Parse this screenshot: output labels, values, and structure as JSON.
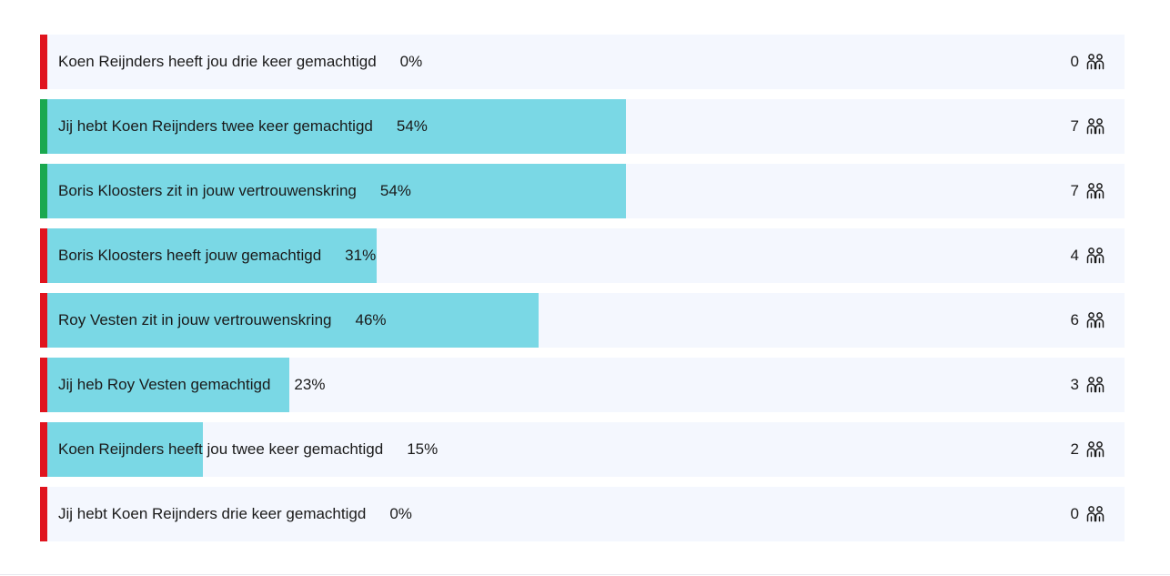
{
  "poll": {
    "colors": {
      "track": "#f4f7fe",
      "fill": "#7ad8e5",
      "status_red": "#e0141e",
      "status_green": "#1aa84f"
    },
    "voter_icon": "people-icon",
    "options": [
      {
        "label": "Koen Reijnders heeft jou drie keer gemachtigd",
        "percent_text": "0%",
        "percent": 0,
        "count": "0",
        "status": "red"
      },
      {
        "label": "Jij hebt Koen Reijnders twee keer gemachtigd",
        "percent_text": "54%",
        "percent": 54,
        "count": "7",
        "status": "green"
      },
      {
        "label": "Boris Kloosters zit in jouw vertrouwenskring",
        "percent_text": "54%",
        "percent": 54,
        "count": "7",
        "status": "green"
      },
      {
        "label": "Boris Kloosters heeft jouw gemachtigd",
        "percent_text": "31%",
        "percent": 31,
        "count": "4",
        "status": "red"
      },
      {
        "label": "Roy Vesten zit in jouw vertrouwenskring",
        "percent_text": "46%",
        "percent": 46,
        "count": "6",
        "status": "red"
      },
      {
        "label": "Jij heb Roy Vesten gemachtigd",
        "percent_text": "23%",
        "percent": 23,
        "count": "3",
        "status": "red"
      },
      {
        "label": "Koen Reijnders heeft jou twee keer gemachtigd",
        "percent_text": "15%",
        "percent": 15,
        "count": "2",
        "status": "red"
      },
      {
        "label": "Jij hebt Koen Reijnders drie keer gemachtigd",
        "percent_text": "0%",
        "percent": 0,
        "count": "0",
        "status": "red"
      }
    ]
  }
}
